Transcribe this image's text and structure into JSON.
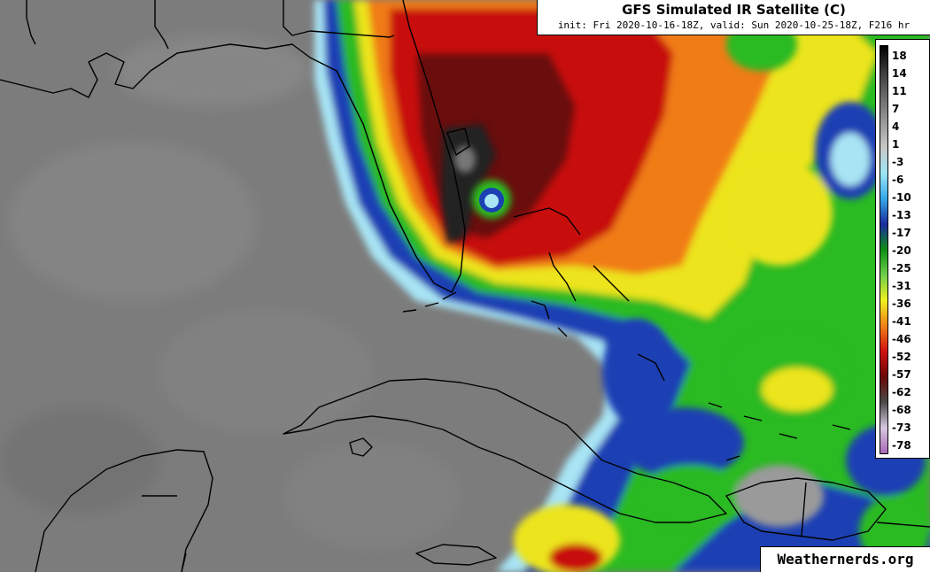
{
  "header": {
    "title": "GFS Simulated IR Satellite (C)",
    "subtitle": "init: Fri 2020-10-16-18Z, valid: Sun 2020-10-25-18Z, F216 hr"
  },
  "legend": {
    "ticks": [
      "18",
      "14",
      "11",
      "7",
      "4",
      "1",
      "-3",
      "-6",
      "-10",
      "-13",
      "-17",
      "-20",
      "-25",
      "-31",
      "-36",
      "-41",
      "-46",
      "-52",
      "-57",
      "-62",
      "-68",
      "-73",
      "-78"
    ],
    "colors": [
      "#000000",
      "#3a3a3a",
      "#6a6a6a",
      "#9a9a9a",
      "#c8c8c8",
      "#9de6f5",
      "#36a8e8",
      "#1a2c9c",
      "#0e8f16",
      "#6fd04c",
      "#f0f020",
      "#f08018",
      "#d01010",
      "#6a0808",
      "#4a4a4a",
      "#d8c8e0",
      "#a868b8"
    ]
  },
  "colors": {
    "background_gray": "#7a7a7a",
    "cold_cloud_red": "#c81010",
    "deep_core": "#1c1c1c",
    "orange": "#f07a18",
    "yellow": "#f0e020",
    "green": "#2ec01e",
    "blue": "#1a3ab0"
  },
  "watermark": "Weathernerds.org"
}
